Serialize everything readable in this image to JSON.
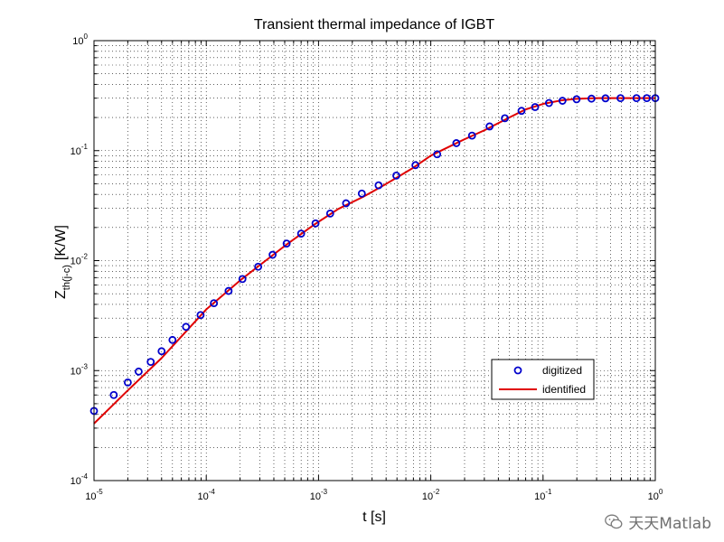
{
  "chart_data": {
    "type": "line",
    "title": "Transient thermal impedance of IGBT",
    "xlabel": "t [s]",
    "ylabel": {
      "main": "Z",
      "subscript": "th(j-c)",
      "unit": "[K/W]"
    },
    "xscale": "log",
    "yscale": "log",
    "xlim": [
      1e-05,
      1
    ],
    "ylim": [
      0.0001,
      1
    ],
    "grid": true,
    "xticks": [
      {
        "value": 1e-05,
        "base": "10",
        "exp": "-5"
      },
      {
        "value": 0.0001,
        "base": "10",
        "exp": "-4"
      },
      {
        "value": 0.001,
        "base": "10",
        "exp": "-3"
      },
      {
        "value": 0.01,
        "base": "10",
        "exp": "-2"
      },
      {
        "value": 0.1,
        "base": "10",
        "exp": "-1"
      },
      {
        "value": 1,
        "base": "10",
        "exp": "0"
      }
    ],
    "yticks": [
      {
        "value": 0.0001,
        "base": "10",
        "exp": "-4"
      },
      {
        "value": 0.001,
        "base": "10",
        "exp": "-3"
      },
      {
        "value": 0.01,
        "base": "10",
        "exp": "-2"
      },
      {
        "value": 0.1,
        "base": "10",
        "exp": "-1"
      },
      {
        "value": 1,
        "base": "10",
        "exp": "0"
      }
    ],
    "legend_position": "lower-right",
    "series": [
      {
        "name": "digitized",
        "style": "markers",
        "marker": "circle",
        "color": "#0000cc",
        "x": [
          1e-05,
          1.5e-05,
          2e-05,
          2.5e-05,
          3.2e-05,
          4e-05,
          5e-05,
          6.6e-05,
          8.9e-05,
          0.000117,
          0.000158,
          0.00021,
          0.00029,
          0.00039,
          0.00052,
          0.0007,
          0.00094,
          0.00127,
          0.00176,
          0.00243,
          0.00343,
          0.00493,
          0.0073,
          0.0114,
          0.0169,
          0.0233,
          0.0334,
          0.0457,
          0.0643,
          0.085,
          0.113,
          0.149,
          0.199,
          0.27,
          0.36,
          0.49,
          0.68,
          0.84,
          1.0
        ],
        "y": [
          0.00043,
          0.0006,
          0.00078,
          0.00098,
          0.0012,
          0.0015,
          0.0019,
          0.0025,
          0.0032,
          0.0041,
          0.0053,
          0.0068,
          0.0088,
          0.0113,
          0.0143,
          0.0176,
          0.0218,
          0.0268,
          0.0332,
          0.0407,
          0.0484,
          0.0593,
          0.0738,
          0.0927,
          0.117,
          0.137,
          0.166,
          0.197,
          0.23,
          0.249,
          0.271,
          0.284,
          0.293,
          0.297,
          0.299,
          0.3,
          0.3,
          0.3,
          0.3
        ]
      },
      {
        "name": "identified",
        "style": "line",
        "color": "#e00000",
        "x": [
          1e-05,
          2e-05,
          4e-05,
          0.0001,
          0.0002,
          0.0003,
          0.0005,
          0.0009,
          0.0015,
          0.0025,
          0.0035,
          0.005,
          0.007,
          0.01,
          0.02,
          0.03,
          0.05,
          0.07,
          0.1,
          0.15,
          0.2,
          0.3,
          0.5,
          1.0
        ],
        "y": [
          0.00033,
          0.00066,
          0.0013,
          0.0036,
          0.0066,
          0.0091,
          0.0136,
          0.021,
          0.0295,
          0.038,
          0.046,
          0.057,
          0.07,
          0.09,
          0.127,
          0.153,
          0.2,
          0.237,
          0.266,
          0.288,
          0.296,
          0.3,
          0.3,
          0.3
        ]
      }
    ]
  },
  "watermark": {
    "text": "天天Matlab",
    "icon": "wechat-icon"
  }
}
